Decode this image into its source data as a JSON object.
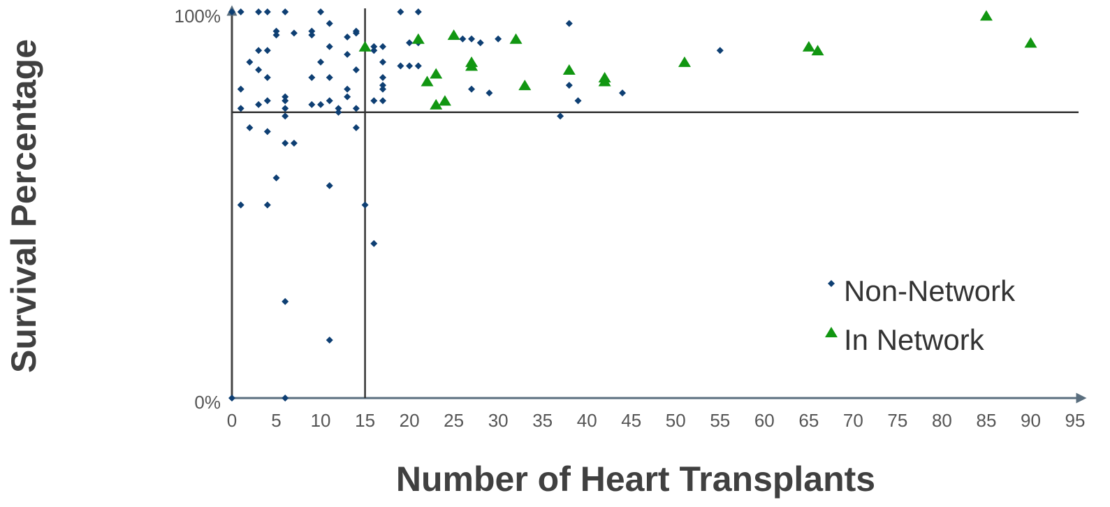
{
  "chart_data": {
    "type": "scatter",
    "x_label": "Number of Heart Transplants",
    "y_label": "Survival Percentage",
    "xlim": [
      0,
      95
    ],
    "ylim": [
      0,
      100
    ],
    "xticks": [
      0,
      5,
      10,
      15,
      20,
      25,
      30,
      35,
      40,
      45,
      50,
      55,
      60,
      65,
      70,
      75,
      80,
      85,
      90,
      95
    ],
    "yticks": [
      {
        "value": 0,
        "label": "0%"
      },
      {
        "value": 100,
        "label": "100%"
      }
    ],
    "grid": false,
    "reference_lines": {
      "x": 15,
      "y": 74
    },
    "series": [
      {
        "name": "Non-Network",
        "color": "#0e3f73",
        "marker": "diamond",
        "x": [
          0,
          1,
          3,
          4,
          6,
          10,
          19,
          21,
          11,
          38,
          5,
          5,
          7,
          9,
          9,
          13,
          14,
          14,
          11,
          3,
          4,
          16,
          17,
          16,
          20,
          21,
          27,
          28,
          30,
          26,
          55,
          2,
          10,
          13,
          19,
          20,
          21,
          27,
          17,
          3,
          4,
          9,
          11,
          14,
          17,
          17,
          17,
          1,
          13,
          13,
          29,
          27,
          38,
          44,
          39,
          6,
          6,
          4,
          3,
          9,
          10,
          11,
          16,
          17,
          1,
          6,
          12,
          12,
          14,
          6,
          37,
          2,
          4,
          14,
          6,
          7,
          5,
          11,
          1,
          4,
          15,
          16,
          6,
          11,
          0,
          6
        ],
        "y": [
          100,
          100,
          100,
          100,
          100,
          100,
          100,
          100,
          97,
          97,
          95,
          94,
          94.5,
          95,
          94,
          93.5,
          95,
          94.5,
          91,
          90,
          90,
          91,
          91,
          90,
          92,
          92,
          93,
          92,
          93,
          93,
          90,
          87,
          87,
          89,
          86,
          86,
          86,
          86,
          87,
          85,
          83,
          83,
          83,
          85,
          83,
          81,
          80,
          80,
          80,
          78,
          79,
          80,
          81,
          79,
          77,
          78,
          77,
          77,
          76,
          76,
          76,
          77,
          77,
          77,
          75,
          75,
          75,
          74,
          75,
          73,
          73,
          70,
          69,
          70,
          66,
          66,
          57,
          55,
          50,
          50,
          50,
          40,
          25,
          15,
          0,
          0
        ]
      },
      {
        "name": "In Network",
        "color": "#119611",
        "marker": "triangle",
        "x": [
          15,
          21,
          25,
          32,
          27,
          27,
          23,
          22,
          23,
          24,
          33,
          38,
          42,
          42,
          51,
          65,
          66,
          85,
          90
        ],
        "y": [
          91,
          93,
          94,
          93,
          87,
          86,
          84,
          82,
          76,
          77,
          81,
          85,
          83,
          82,
          87,
          91,
          90,
          99,
          92
        ]
      }
    ]
  }
}
